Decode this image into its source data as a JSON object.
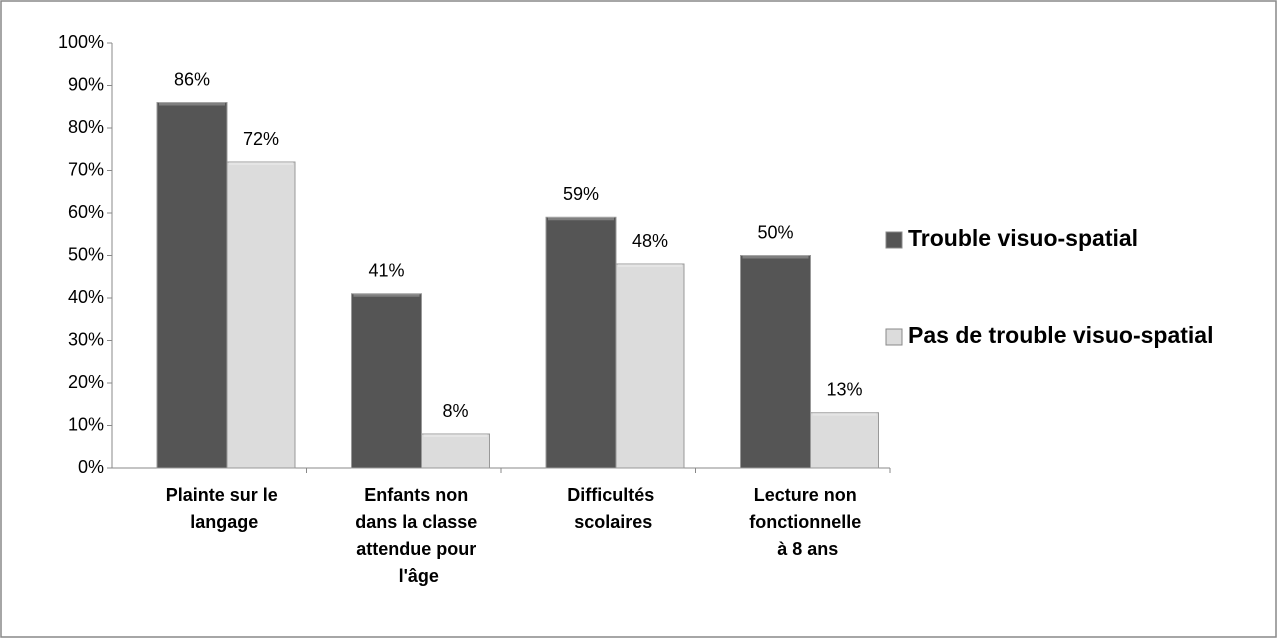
{
  "chart_data": {
    "type": "bar",
    "categories": [
      "Plainte sur le langage",
      "Enfants non dans la classe attendue pour l'âge",
      "Difficultés scolaires",
      "Lecture non fonctionnelle à 8 ans"
    ],
    "series": [
      {
        "name": "Trouble visuo-spatial",
        "color": "#555555",
        "values": [
          86,
          41,
          59,
          50
        ],
        "value_labels": [
          "86%",
          "41%",
          "59%",
          "50%"
        ]
      },
      {
        "name": "Pas de trouble visuo-spatial",
        "color": "#dcdcdc",
        "values": [
          72,
          8,
          48,
          13
        ],
        "value_labels": [
          "72%",
          "8%",
          "48%",
          "13%"
        ]
      }
    ],
    "ylim": [
      0,
      100
    ],
    "yticks": [
      {
        "value": 0,
        "label": "0%"
      },
      {
        "value": 10,
        "label": "10%"
      },
      {
        "value": 20,
        "label": "20%"
      },
      {
        "value": 30,
        "label": "30%"
      },
      {
        "value": 40,
        "label": "40%"
      },
      {
        "value": 50,
        "label": "50%"
      },
      {
        "value": 60,
        "label": "60%"
      },
      {
        "value": 70,
        "label": "70%"
      },
      {
        "value": 80,
        "label": "80%"
      },
      {
        "value": 90,
        "label": "90%"
      },
      {
        "value": 100,
        "label": "100%"
      }
    ],
    "legend": "right"
  }
}
